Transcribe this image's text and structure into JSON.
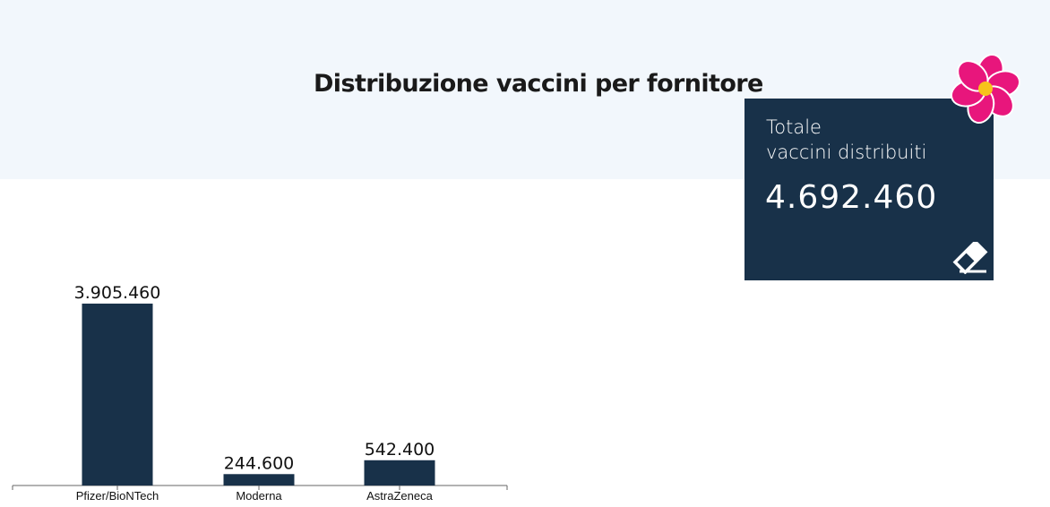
{
  "header": {
    "title": "Distribuzione vaccini per fornitore"
  },
  "total_card": {
    "label_line1": "Totale",
    "label_line2": "vaccini distribuiti",
    "value": "4.692.460",
    "icon": "eraser-icon",
    "background_color": "#183149"
  },
  "decoration": {
    "icon": "flower-icon",
    "petal_color": "#e8167c",
    "center_color": "#f7c31b"
  },
  "chart_data": {
    "type": "bar",
    "categories": [
      "Pfizer/BioNTech",
      "Moderna",
      "AstraZeneca"
    ],
    "values": [
      3905460,
      244600,
      542400
    ],
    "value_labels": [
      "3.905.460",
      "244.600",
      "542.400"
    ],
    "bar_color": "#183149",
    "ylim": [
      0,
      4000000
    ],
    "grid": false
  }
}
